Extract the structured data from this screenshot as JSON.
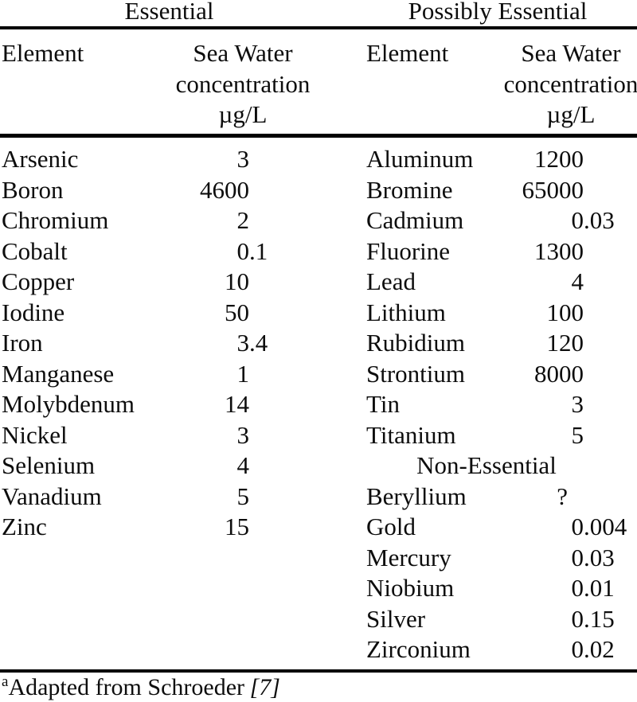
{
  "colors": {
    "background": "#ffffff",
    "text": "#0d0d0d",
    "rule": "#000000"
  },
  "title_groups": {
    "left": "Essential",
    "right": "Possibly Essential"
  },
  "column_headers": {
    "element": "Element",
    "concentration": [
      "Sea Water",
      "concentration",
      "µg/L"
    ]
  },
  "essential": {
    "rows": [
      {
        "element": "Arsenic",
        "value": "3"
      },
      {
        "element": "Boron",
        "value": "4600"
      },
      {
        "element": "Chromium",
        "value": "2"
      },
      {
        "element": "Cobalt",
        "value": "0.1"
      },
      {
        "element": "Copper",
        "value": "10"
      },
      {
        "element": "Iodine",
        "value": "50"
      },
      {
        "element": "Iron",
        "value": "3.4"
      },
      {
        "element": "Manganese",
        "value": "1"
      },
      {
        "element": "Molybdenum",
        "value": "14"
      },
      {
        "element": "Nickel",
        "value": "3"
      },
      {
        "element": "Selenium",
        "value": "4"
      },
      {
        "element": "Vanadium",
        "value": "5"
      },
      {
        "element": "Zinc",
        "value": "15"
      }
    ]
  },
  "possibly_essential": {
    "rows": [
      {
        "element": "Aluminum",
        "value": "1200"
      },
      {
        "element": "Bromine",
        "value": "65000"
      },
      {
        "element": "Cadmium",
        "value": "0.03"
      },
      {
        "element": "Fluorine",
        "value": "1300"
      },
      {
        "element": "Lead",
        "value": "4"
      },
      {
        "element": "Lithium",
        "value": "100"
      },
      {
        "element": "Rubidium",
        "value": "120"
      },
      {
        "element": "Strontium",
        "value": "8000"
      },
      {
        "element": "Tin",
        "value": "3"
      },
      {
        "element": "Titanium",
        "value": "5"
      }
    ]
  },
  "non_essential": {
    "subheading": "Non-Essential",
    "rows": [
      {
        "element": "Beryllium",
        "value": "?"
      },
      {
        "element": "Gold",
        "value": "0.004"
      },
      {
        "element": "Mercury",
        "value": "0.03"
      },
      {
        "element": "Niobium",
        "value": "0.01"
      },
      {
        "element": "Silver",
        "value": "0.15"
      },
      {
        "element": "Zirconium",
        "value": "0.02"
      }
    ]
  },
  "footnote": {
    "marker": "a",
    "text": "Adapted from Schroeder",
    "citation": "[7]"
  }
}
